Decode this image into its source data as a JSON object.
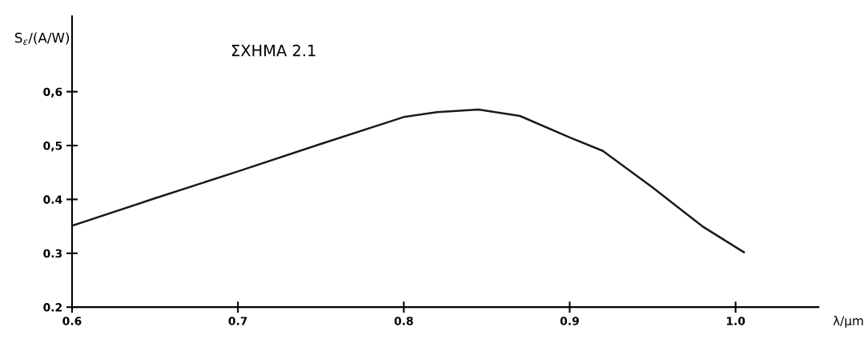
{
  "chart_data": {
    "type": "line",
    "title": "ΣΧΗΜΑ 2.1",
    "xlabel": "λ/μm",
    "ylabel": "S$_{ε}$/(A/W)",
    "x": [
      0.601,
      0.65,
      0.7,
      0.75,
      0.8,
      0.82,
      0.845,
      0.87,
      0.9,
      0.92,
      0.95,
      0.98,
      1.005
    ],
    "series": [
      {
        "color": "#1a1a1a",
        "values": [
          0.352,
          0.402,
          0.452,
          0.503,
          0.553,
          0.562,
          0.567,
          0.555,
          0.515,
          0.49,
          0.422,
          0.35,
          0.302
        ]
      }
    ],
    "xlim": [
      0.6,
      1.05
    ],
    "ylim": [
      0.2,
      0.74
    ],
    "xticks": [
      0.6,
      0.7,
      0.8,
      0.9,
      {
        "value": 1.0,
        "label": "1.0"
      }
    ],
    "yticks": [
      {
        "value": 0.2,
        "label": "0.2"
      },
      {
        "value": 0.3,
        "label": "0.3"
      },
      {
        "value": 0.4,
        "label": "0.4"
      },
      {
        "value": 0.5,
        "label": "0,5"
      },
      {
        "value": 0.6,
        "label": "0,6"
      }
    ],
    "grid": false,
    "legend": false,
    "marker": "none",
    "line_style": "solid"
  }
}
